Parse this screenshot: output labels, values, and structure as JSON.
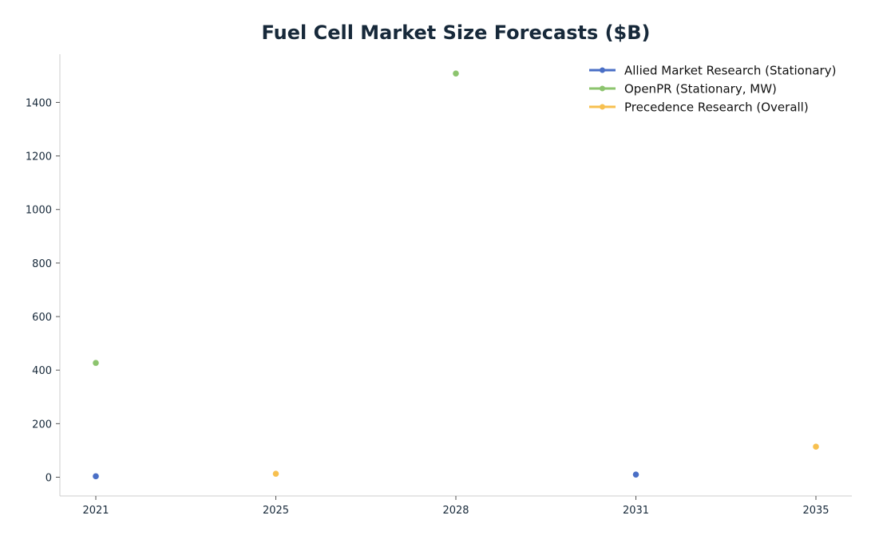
{
  "chart_data": {
    "type": "scatter",
    "title": "Fuel Cell Market Size Forecasts ($B)",
    "xlabel": "",
    "ylabel": "",
    "categories": [
      "2021",
      "2025",
      "2028",
      "2031",
      "2035"
    ],
    "ylim": [
      -70,
      1580
    ],
    "yticks": [
      0,
      200,
      400,
      600,
      800,
      1000,
      1200,
      1400
    ],
    "grid": false,
    "legend_position": "top-right",
    "series": [
      {
        "name": "Allied Market Research (Stationary)",
        "color": "#4a6fc6",
        "points": [
          {
            "x": "2021",
            "y": 3.5
          },
          {
            "x": "2031",
            "y": 10
          }
        ]
      },
      {
        "name": "OpenPR (Stationary, MW)",
        "color": "#8cc46e",
        "points": [
          {
            "x": "2021",
            "y": 427
          },
          {
            "x": "2028",
            "y": 1508
          }
        ]
      },
      {
        "name": "Precedence Research (Overall)",
        "color": "#f7c04f",
        "points": [
          {
            "x": "2025",
            "y": 13
          },
          {
            "x": "2035",
            "y": 114
          }
        ]
      }
    ]
  }
}
